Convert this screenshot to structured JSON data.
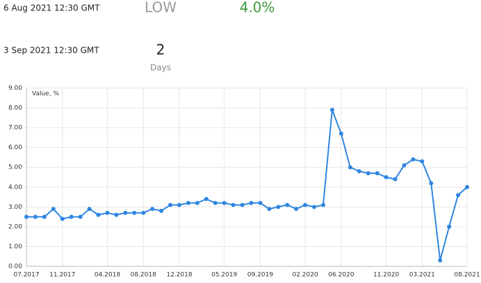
{
  "event": {
    "date": "6 Aug 2021 12:30 GMT",
    "importance": "LOW",
    "value": "4.0%",
    "next_date": "3 Sep 2021 12:30 GMT",
    "countdown": "2",
    "countdown_unit": "Days"
  },
  "chart_data": {
    "type": "line",
    "y_label": "Value, %",
    "categories": [
      "07.2017",
      null,
      null,
      null,
      "11.2017",
      null,
      null,
      null,
      null,
      "04.2018",
      null,
      null,
      null,
      "08.2018",
      null,
      null,
      null,
      "12.2018",
      null,
      null,
      null,
      null,
      "05.2019",
      null,
      null,
      null,
      "09.2019",
      null,
      null,
      null,
      null,
      "02.2020",
      null,
      null,
      null,
      "06.2020",
      null,
      null,
      null,
      null,
      "11.2020",
      null,
      null,
      null,
      "03.2021",
      null,
      null,
      null,
      null,
      "08.2021"
    ],
    "series": [
      {
        "color": "#2f86e0",
        "values": [
          2.5,
          2.5,
          2.5,
          2.9,
          2.4,
          2.5,
          2.5,
          2.9,
          2.6,
          2.7,
          2.6,
          2.7,
          2.7,
          2.7,
          2.9,
          2.8,
          3.1,
          3.1,
          3.2,
          3.2,
          3.4,
          3.2,
          3.2,
          3.1,
          3.1,
          3.2,
          3.2,
          2.9,
          3.0,
          3.1,
          2.9,
          3.1,
          3.0,
          3.1,
          7.9,
          6.7,
          5.0,
          4.8,
          4.7,
          4.7,
          4.5,
          4.4,
          5.1,
          5.4,
          5.3,
          4.2,
          0.3,
          2.0,
          3.6,
          4.0
        ]
      }
    ],
    "ylim": [
      0,
      9
    ],
    "yticks": [
      {
        "value": 0,
        "label": "0.00"
      },
      {
        "value": 1,
        "label": "1.00"
      },
      {
        "value": 2,
        "label": "2.00"
      },
      {
        "value": 3,
        "label": "3.00"
      },
      {
        "value": 4,
        "label": "4.00"
      },
      {
        "value": 5,
        "label": "5.00"
      },
      {
        "value": 6,
        "label": "6.00"
      },
      {
        "value": 7,
        "label": "7.00"
      },
      {
        "value": 8,
        "label": "8.00"
      },
      {
        "value": 9,
        "label": "9.00"
      }
    ],
    "grid": true
  }
}
